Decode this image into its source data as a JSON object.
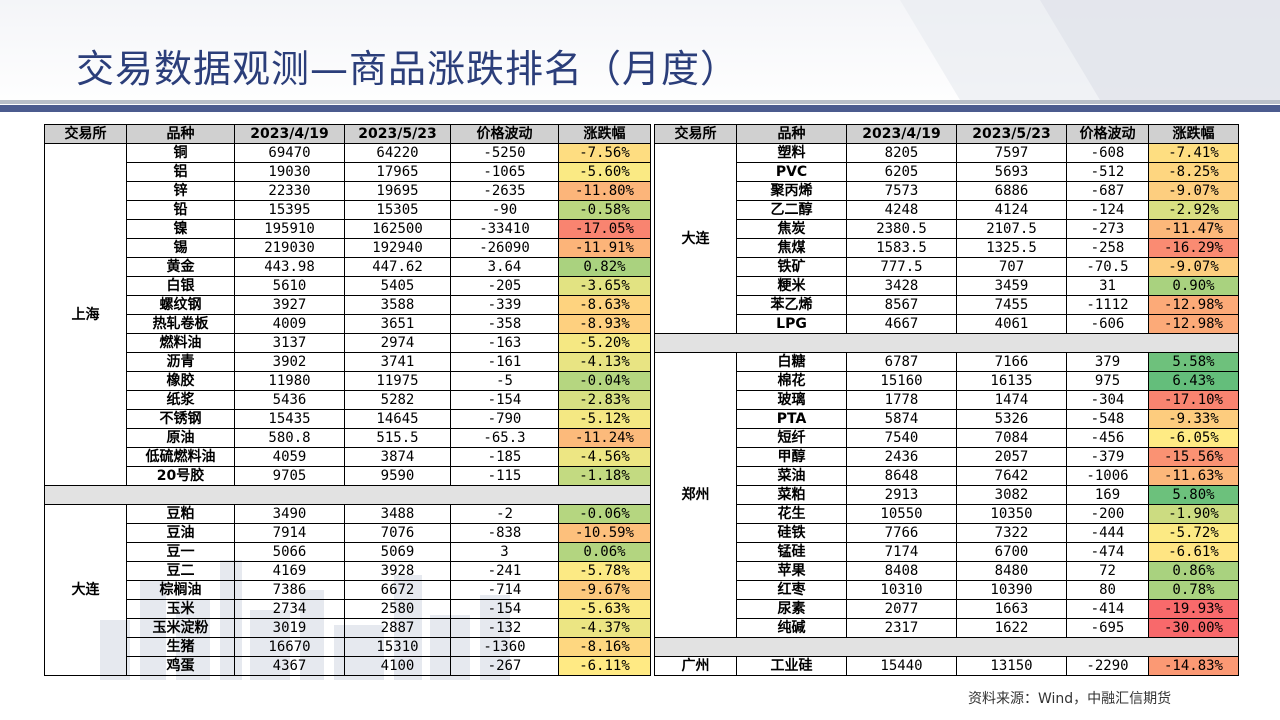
{
  "title": "交易数据观测—商品涨跌排名（月度）",
  "source": "资料来源：Wind，中融汇信期货",
  "headers": [
    "交易所",
    "品种",
    "2023/4/19",
    "2023/5/23",
    "价格波动",
    "涨跌幅"
  ],
  "left_table": {
    "groups": [
      {
        "exchange": "上海",
        "rows": [
          {
            "name": "铜",
            "p1": "69470",
            "p2": "64220",
            "chg": "-5250",
            "pct": "-7.56%",
            "level": -7.56
          },
          {
            "name": "铝",
            "p1": "19030",
            "p2": "17965",
            "chg": "-1065",
            "pct": "-5.60%",
            "level": -5.6
          },
          {
            "name": "锌",
            "p1": "22330",
            "p2": "19695",
            "chg": "-2635",
            "pct": "-11.80%",
            "level": -11.8
          },
          {
            "name": "铅",
            "p1": "15395",
            "p2": "15305",
            "chg": "-90",
            "pct": "-0.58%",
            "level": -0.58
          },
          {
            "name": "镍",
            "p1": "195910",
            "p2": "162500",
            "chg": "-33410",
            "pct": "-17.05%",
            "level": -17.05
          },
          {
            "name": "锡",
            "p1": "219030",
            "p2": "192940",
            "chg": "-26090",
            "pct": "-11.91%",
            "level": -11.91
          },
          {
            "name": "黄金",
            "p1": "443.98",
            "p2": "447.62",
            "chg": "3.64",
            "pct": "0.82%",
            "level": 0.82
          },
          {
            "name": "白银",
            "p1": "5610",
            "p2": "5405",
            "chg": "-205",
            "pct": "-3.65%",
            "level": -3.65
          },
          {
            "name": "螺纹钢",
            "p1": "3927",
            "p2": "3588",
            "chg": "-339",
            "pct": "-8.63%",
            "level": -8.63
          },
          {
            "name": "热轧卷板",
            "p1": "4009",
            "p2": "3651",
            "chg": "-358",
            "pct": "-8.93%",
            "level": -8.93
          },
          {
            "name": "燃料油",
            "p1": "3137",
            "p2": "2974",
            "chg": "-163",
            "pct": "-5.20%",
            "level": -5.2
          },
          {
            "name": "沥青",
            "p1": "3902",
            "p2": "3741",
            "chg": "-161",
            "pct": "-4.13%",
            "level": -4.13
          },
          {
            "name": "橡胶",
            "p1": "11980",
            "p2": "11975",
            "chg": "-5",
            "pct": "-0.04%",
            "level": -0.04
          },
          {
            "name": "纸浆",
            "p1": "5436",
            "p2": "5282",
            "chg": "-154",
            "pct": "-2.83%",
            "level": -2.83
          },
          {
            "name": "不锈钢",
            "p1": "15435",
            "p2": "14645",
            "chg": "-790",
            "pct": "-5.12%",
            "level": -5.12
          },
          {
            "name": "原油",
            "p1": "580.8",
            "p2": "515.5",
            "chg": "-65.3",
            "pct": "-11.24%",
            "level": -11.24
          },
          {
            "name": "低硫燃料油",
            "p1": "4059",
            "p2": "3874",
            "chg": "-185",
            "pct": "-4.56%",
            "level": -4.56
          },
          {
            "name": "20号胶",
            "p1": "9705",
            "p2": "9590",
            "chg": "-115",
            "pct": "-1.18%",
            "level": -1.18
          }
        ]
      },
      {
        "exchange": "大连",
        "rows": [
          {
            "name": "豆粕",
            "p1": "3490",
            "p2": "3488",
            "chg": "-2",
            "pct": "-0.06%",
            "level": -0.06
          },
          {
            "name": "豆油",
            "p1": "7914",
            "p2": "7076",
            "chg": "-838",
            "pct": "-10.59%",
            "level": -10.59
          },
          {
            "name": "豆一",
            "p1": "5066",
            "p2": "5069",
            "chg": "3",
            "pct": "0.06%",
            "level": 0.06
          },
          {
            "name": "豆二",
            "p1": "4169",
            "p2": "3928",
            "chg": "-241",
            "pct": "-5.78%",
            "level": -5.78
          },
          {
            "name": "棕榈油",
            "p1": "7386",
            "p2": "6672",
            "chg": "-714",
            "pct": "-9.67%",
            "level": -9.67
          },
          {
            "name": "玉米",
            "p1": "2734",
            "p2": "2580",
            "chg": "-154",
            "pct": "-5.63%",
            "level": -5.63
          },
          {
            "name": "玉米淀粉",
            "p1": "3019",
            "p2": "2887",
            "chg": "-132",
            "pct": "-4.37%",
            "level": -4.37
          },
          {
            "name": "生猪",
            "p1": "16670",
            "p2": "15310",
            "chg": "-1360",
            "pct": "-8.16%",
            "level": -8.16
          },
          {
            "name": "鸡蛋",
            "p1": "4367",
            "p2": "4100",
            "chg": "-267",
            "pct": "-6.11%",
            "level": -6.11
          }
        ]
      }
    ]
  },
  "right_table": {
    "groups": [
      {
        "exchange": "大连",
        "rows": [
          {
            "name": "塑料",
            "p1": "8205",
            "p2": "7597",
            "chg": "-608",
            "pct": "-7.41%",
            "level": -7.41
          },
          {
            "name": "PVC",
            "p1": "6205",
            "p2": "5693",
            "chg": "-512",
            "pct": "-8.25%",
            "level": -8.25
          },
          {
            "name": "聚丙烯",
            "p1": "7573",
            "p2": "6886",
            "chg": "-687",
            "pct": "-9.07%",
            "level": -9.07
          },
          {
            "name": "乙二醇",
            "p1": "4248",
            "p2": "4124",
            "chg": "-124",
            "pct": "-2.92%",
            "level": -2.92
          },
          {
            "name": "焦炭",
            "p1": "2380.5",
            "p2": "2107.5",
            "chg": "-273",
            "pct": "-11.47%",
            "level": -11.47
          },
          {
            "name": "焦煤",
            "p1": "1583.5",
            "p2": "1325.5",
            "chg": "-258",
            "pct": "-16.29%",
            "level": -16.29
          },
          {
            "name": "铁矿",
            "p1": "777.5",
            "p2": "707",
            "chg": "-70.5",
            "pct": "-9.07%",
            "level": -9.07
          },
          {
            "name": "粳米",
            "p1": "3428",
            "p2": "3459",
            "chg": "31",
            "pct": "0.90%",
            "level": 0.9
          },
          {
            "name": "苯乙烯",
            "p1": "8567",
            "p2": "7455",
            "chg": "-1112",
            "pct": "-12.98%",
            "level": -12.98
          },
          {
            "name": "LPG",
            "p1": "4667",
            "p2": "4061",
            "chg": "-606",
            "pct": "-12.98%",
            "level": -12.98
          }
        ]
      },
      {
        "exchange": "郑州",
        "rows": [
          {
            "name": "白糖",
            "p1": "6787",
            "p2": "7166",
            "chg": "379",
            "pct": "5.58%",
            "level": 5.58
          },
          {
            "name": "棉花",
            "p1": "15160",
            "p2": "16135",
            "chg": "975",
            "pct": "6.43%",
            "level": 6.43
          },
          {
            "name": "玻璃",
            "p1": "1778",
            "p2": "1474",
            "chg": "-304",
            "pct": "-17.10%",
            "level": -17.1
          },
          {
            "name": "PTA",
            "p1": "5874",
            "p2": "5326",
            "chg": "-548",
            "pct": "-9.33%",
            "level": -9.33
          },
          {
            "name": "短纤",
            "p1": "7540",
            "p2": "7084",
            "chg": "-456",
            "pct": "-6.05%",
            "level": -6.05
          },
          {
            "name": "甲醇",
            "p1": "2436",
            "p2": "2057",
            "chg": "-379",
            "pct": "-15.56%",
            "level": -15.56
          },
          {
            "name": "菜油",
            "p1": "8648",
            "p2": "7642",
            "chg": "-1006",
            "pct": "-11.63%",
            "level": -11.63
          },
          {
            "name": "菜粕",
            "p1": "2913",
            "p2": "3082",
            "chg": "169",
            "pct": "5.80%",
            "level": 5.8
          },
          {
            "name": "花生",
            "p1": "10550",
            "p2": "10350",
            "chg": "-200",
            "pct": "-1.90%",
            "level": -1.9
          },
          {
            "name": "硅铁",
            "p1": "7766",
            "p2": "7322",
            "chg": "-444",
            "pct": "-5.72%",
            "level": -5.72
          },
          {
            "name": "锰硅",
            "p1": "7174",
            "p2": "6700",
            "chg": "-474",
            "pct": "-6.61%",
            "level": -6.61
          },
          {
            "name": "苹果",
            "p1": "8408",
            "p2": "8480",
            "chg": "72",
            "pct": "0.86%",
            "level": 0.86
          },
          {
            "name": "红枣",
            "p1": "10310",
            "p2": "10390",
            "chg": "80",
            "pct": "0.78%",
            "level": 0.78
          },
          {
            "name": "尿素",
            "p1": "2077",
            "p2": "1663",
            "chg": "-414",
            "pct": "-19.93%",
            "level": -19.93
          },
          {
            "name": "纯碱",
            "p1": "2317",
            "p2": "1622",
            "chg": "-695",
            "pct": "-30.00%",
            "level": -30.0
          }
        ]
      },
      {
        "exchange": "广州",
        "rows": [
          {
            "name": "工业硅",
            "p1": "15440",
            "p2": "13150",
            "chg": "-2290",
            "pct": "-14.83%",
            "level": -14.83
          }
        ]
      }
    ]
  },
  "colors": {
    "title": "#2b3e7a",
    "header_bg": "#d0d0d0",
    "separator_bg": "#e2e2e2",
    "scale_red": "#f8696b",
    "scale_yellow": "#ffeb84",
    "scale_green": "#63be7b"
  }
}
